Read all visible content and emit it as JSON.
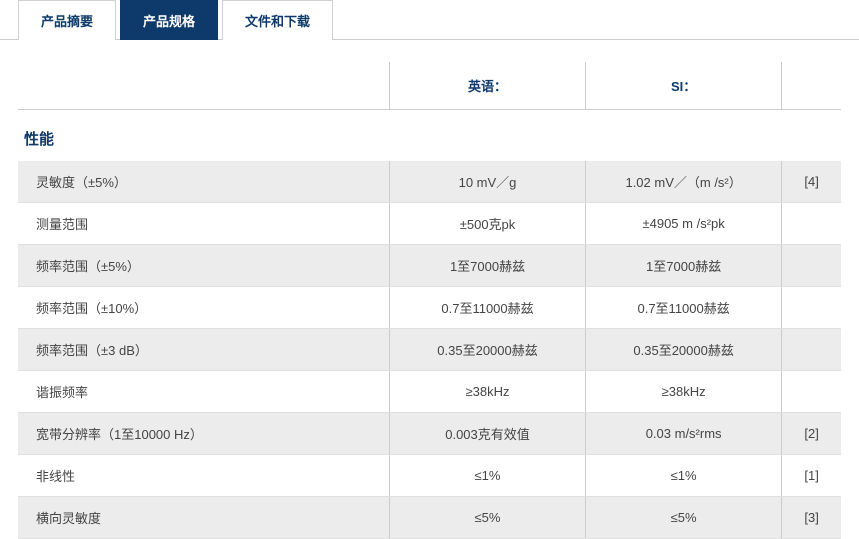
{
  "tabs": [
    {
      "label": "产品摘要",
      "active": false
    },
    {
      "label": "产品规格",
      "active": true
    },
    {
      "label": "文件和下载",
      "active": false
    }
  ],
  "table": {
    "headers": {
      "param": "",
      "english": "英语：",
      "si": "SI：",
      "note": ""
    },
    "section_title": "性能",
    "rows": [
      {
        "param": "灵敏度（±5%）",
        "english": "10 mV／g",
        "si": "1.02 mV／（m /s²）",
        "note": "[4]",
        "shade": true
      },
      {
        "param": "测量范围",
        "english": "±500克pk",
        "si": "±4905 m /s²pk",
        "note": "",
        "shade": false
      },
      {
        "param": "频率范围（±5%）",
        "english": "1至7000赫兹",
        "si": "1至7000赫兹",
        "note": "",
        "shade": true
      },
      {
        "param": "频率范围（±10%）",
        "english": "0.7至11000赫兹",
        "si": "0.7至11000赫兹",
        "note": "",
        "shade": false
      },
      {
        "param": "频率范围（±3 dB）",
        "english": "0.35至20000赫兹",
        "si": "0.35至20000赫兹",
        "note": "",
        "shade": true
      },
      {
        "param": "谐振频率",
        "english": "≥38kHz",
        "si": "≥38kHz",
        "note": "",
        "shade": false
      },
      {
        "param": "宽带分辨率（1至10000 Hz）",
        "english": "0.003克有效值",
        "si": "0.03 m/s²rms",
        "note": "[2]",
        "shade": true
      },
      {
        "param": "非线性",
        "english": "≤1%",
        "si": "≤1%",
        "note": "[1]",
        "shade": false
      },
      {
        "param": "横向灵敏度",
        "english": "≤5%",
        "si": "≤5%",
        "note": "[3]",
        "shade": true
      }
    ]
  }
}
